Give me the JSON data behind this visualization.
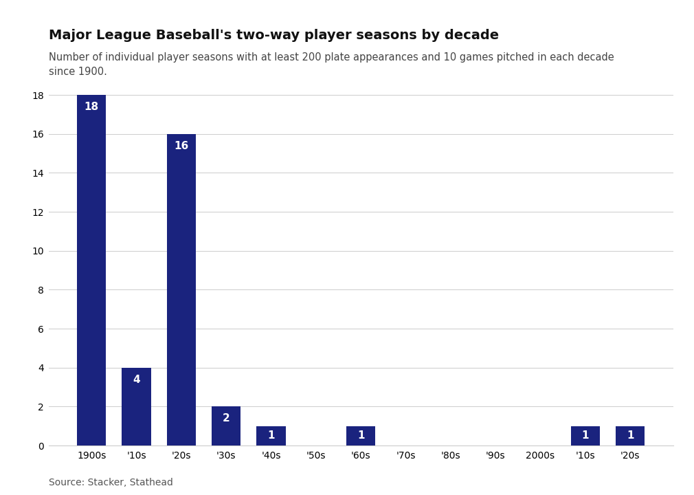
{
  "title": "Major League Baseball's two-way player seasons by decade",
  "subtitle": "Number of individual player seasons with at least 200 plate appearances and 10 games pitched in each decade\nsince 1900.",
  "source": "Source: Stacker, Stathead",
  "categories": [
    "1900s",
    "'10s",
    "'20s",
    "'30s",
    "'40s",
    "'50s",
    "'60s",
    "'70s",
    "'80s",
    "'90s",
    "2000s",
    "'10s",
    "'20s"
  ],
  "values": [
    18,
    4,
    16,
    2,
    1,
    0,
    1,
    0,
    0,
    0,
    0,
    1,
    1
  ],
  "bar_color": "#1a237e",
  "background_color": "#ffffff",
  "ylim_max": 18,
  "yticks": [
    0,
    2,
    4,
    6,
    8,
    10,
    12,
    14,
    16,
    18
  ],
  "title_fontsize": 14,
  "subtitle_fontsize": 10.5,
  "source_fontsize": 10,
  "tick_fontsize": 10,
  "value_label_fontsize": 11,
  "value_label_color": "#ffffff",
  "grid_color": "#cccccc",
  "bar_width": 0.65
}
